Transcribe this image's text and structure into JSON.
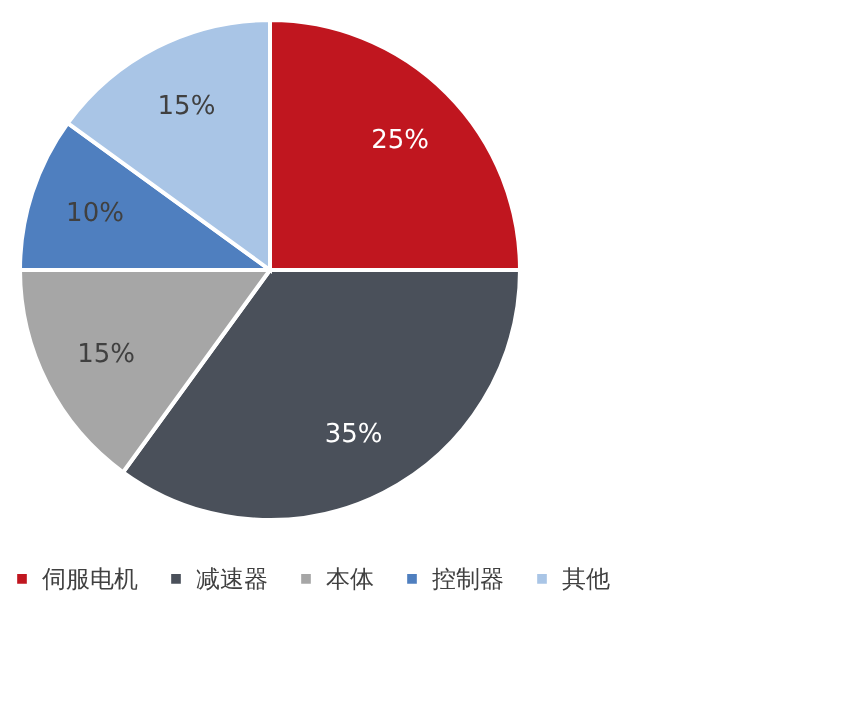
{
  "chart_data": {
    "type": "pie",
    "categories": [
      "伺服电机",
      "减速器",
      "本体",
      "控制器",
      "其他"
    ],
    "values": [
      25,
      35,
      15,
      10,
      15
    ],
    "value_labels": [
      "25%",
      "35%",
      "15%",
      "10%",
      "15%"
    ],
    "colors": [
      "#c0161f",
      "#4a505a",
      "#a6a6a6",
      "#4f7fbf",
      "#a9c5e6"
    ],
    "legend": "bottom"
  }
}
